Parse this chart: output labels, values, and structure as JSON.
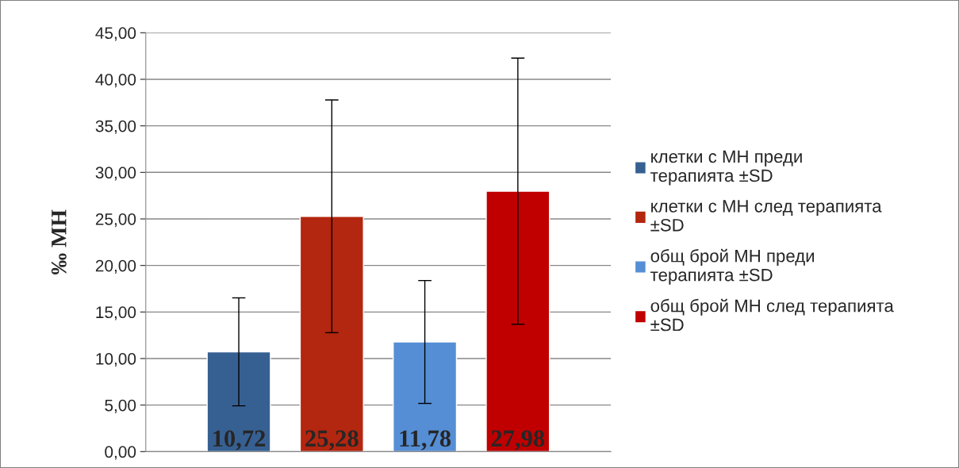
{
  "chart_data": {
    "type": "bar",
    "ylabel": "‰ МН",
    "categories": [
      null
    ],
    "series": [
      {
        "name": "клетки с МН преди терапията ±SD",
        "color": "#376092",
        "values": [
          10.72
        ],
        "errors": [
          5.8
        ],
        "value_labels": [
          "10,72"
        ]
      },
      {
        "name": "клетки с МН след терапията ±SD",
        "color": "#b3260f",
        "values": [
          25.28
        ],
        "errors": [
          12.5
        ],
        "value_labels": [
          "25,28"
        ]
      },
      {
        "name": "общ брой МН преди терапията ±SD",
        "color": "#558ed5",
        "values": [
          11.78
        ],
        "errors": [
          6.6
        ],
        "value_labels": [
          "11,78"
        ]
      },
      {
        "name": "общ брой МН след терапията ±SD",
        "color": "#c00000",
        "values": [
          27.98
        ],
        "errors": [
          14.3
        ],
        "value_labels": [
          "27,98"
        ]
      }
    ],
    "ylim": [
      0,
      45
    ],
    "yticks": [
      {
        "value": 0,
        "label": "0,00"
      },
      {
        "value": 5,
        "label": "5,00"
      },
      {
        "value": 10,
        "label": "10,00"
      },
      {
        "value": 15,
        "label": "15,00"
      },
      {
        "value": 20,
        "label": "20,00"
      },
      {
        "value": 25,
        "label": "25,00"
      },
      {
        "value": 30,
        "label": "30,00"
      },
      {
        "value": 35,
        "label": "35,00"
      },
      {
        "value": 40,
        "label": "40,00"
      },
      {
        "value": 45,
        "label": "45,00"
      }
    ],
    "grid": "y",
    "legend": "right"
  }
}
